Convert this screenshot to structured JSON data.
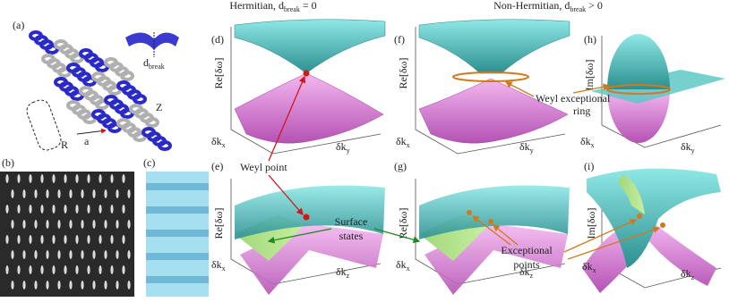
{
  "panel_a": {
    "label": "(a)",
    "d_break": {
      "base": "d",
      "sub": "break"
    },
    "labels": [
      "R",
      "a",
      "Z"
    ]
  },
  "panel_b": {
    "label": "(b)"
  },
  "panel_c": {
    "label": "(c)"
  },
  "headers": [
    {
      "text": "Hermitian, d",
      "sub": "break",
      "tail": " = 0"
    },
    {
      "text": "Non-Hermitian, d",
      "sub": "break",
      "tail": " > 0"
    }
  ],
  "panels": [
    {
      "label": "(d)",
      "y_label": "Re[δω]",
      "x_label": {
        "base": "δk",
        "sub": "x"
      },
      "z_label": {
        "base": "δk",
        "sub": "y"
      }
    },
    {
      "label": "(f)",
      "y_label": "Re[δω]",
      "x_label": {
        "base": "δk",
        "sub": "x"
      },
      "z_label": {
        "base": "δk",
        "sub": "y"
      }
    },
    {
      "label": "(h)",
      "y_label": "Im[δω]",
      "x_label": {
        "base": "δk",
        "sub": "x"
      },
      "z_label": {
        "base": "δk",
        "sub": "y"
      }
    },
    {
      "label": "(e)",
      "y_label": "Re[δω]",
      "x_label": {
        "base": "δk",
        "sub": "x"
      },
      "z_label": {
        "base": "δk",
        "sub": "z"
      }
    },
    {
      "label": "(g)",
      "y_label": "Re[δω]",
      "x_label": {
        "base": "δk",
        "sub": "x"
      },
      "z_label": {
        "base": "δk",
        "sub": "z"
      }
    },
    {
      "label": "(i)",
      "y_label": "Im[δω]",
      "x_label": {
        "base": "δk",
        "sub": "x"
      },
      "z_label": {
        "base": "δk",
        "sub": "z"
      }
    }
  ],
  "annotations": {
    "weyl_point": "Weyl point",
    "weyl_exceptional_ring": [
      "Weyl exceptional",
      "ring"
    ],
    "surface_states": [
      "Surface",
      "states"
    ],
    "exceptional_points": [
      "Exceptional",
      "points"
    ]
  }
}
